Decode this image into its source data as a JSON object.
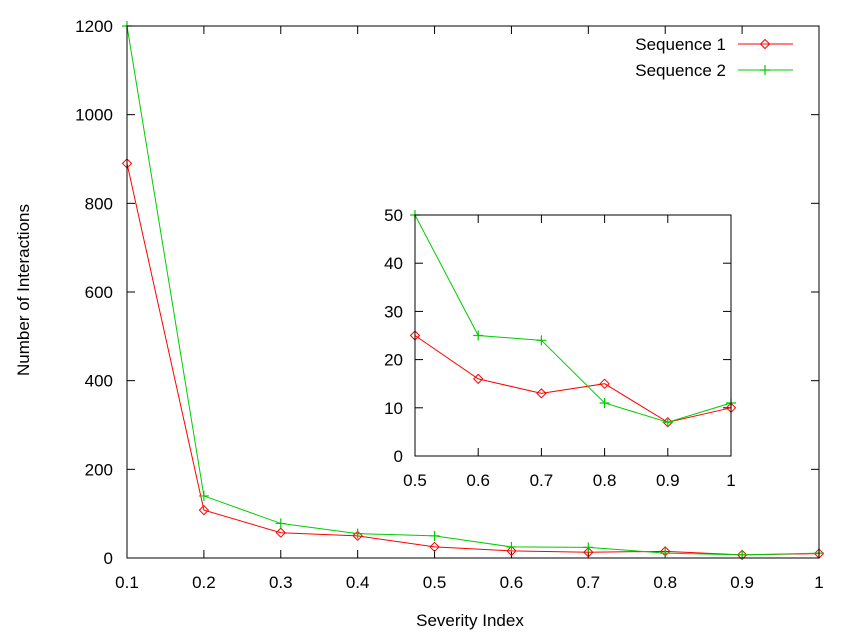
{
  "chart_data": [
    {
      "type": "line",
      "xlabel": "Severity Index",
      "ylabel": "Number of Interactions",
      "xlim": [
        0.1,
        1
      ],
      "ylim": [
        0,
        1200
      ],
      "xticks": [
        "0.1",
        "0.2",
        "0.3",
        "0.4",
        "0.5",
        "0.6",
        "0.7",
        "0.8",
        "0.9",
        "1"
      ],
      "yticks": [
        "0",
        "200",
        "400",
        "600",
        "800",
        "1000",
        "1200"
      ],
      "grid": false,
      "legend_position": "top-right",
      "x": [
        0.1,
        0.2,
        0.3,
        0.4,
        0.5,
        0.6,
        0.7,
        0.8,
        0.9,
        1
      ],
      "series": [
        {
          "name": "Sequence 1",
          "color": "#ff0000",
          "marker": "diamond",
          "values": [
            890,
            108,
            57,
            50,
            25,
            16,
            13,
            15,
            7,
            10
          ]
        },
        {
          "name": "Sequence 2",
          "color": "#00cc00",
          "marker": "plus",
          "values": [
            1200,
            140,
            78,
            55,
            50,
            25,
            24,
            11,
            7,
            11
          ]
        }
      ]
    },
    {
      "type": "line",
      "inset": true,
      "xlim": [
        0.5,
        1
      ],
      "ylim": [
        0,
        50
      ],
      "xticks": [
        "0.5",
        "0.6",
        "0.7",
        "0.8",
        "0.9",
        "1"
      ],
      "yticks": [
        "0",
        "10",
        "20",
        "30",
        "40",
        "50"
      ],
      "x": [
        0.5,
        0.6,
        0.7,
        0.8,
        0.9,
        1
      ],
      "series": [
        {
          "name": "Sequence 1",
          "color": "#ff0000",
          "marker": "diamond",
          "values": [
            25,
            16,
            13,
            15,
            7,
            10
          ]
        },
        {
          "name": "Sequence 2",
          "color": "#00cc00",
          "marker": "plus",
          "values": [
            50,
            25,
            24,
            11,
            7,
            11
          ]
        }
      ]
    }
  ]
}
